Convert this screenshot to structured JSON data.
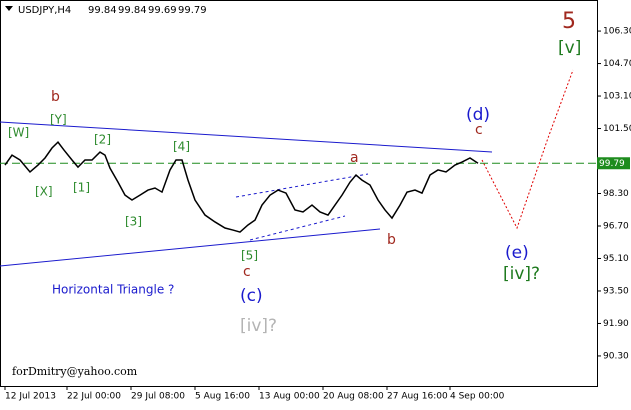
{
  "chart_data": {
    "type": "line",
    "symbol": "USDJPY,H4",
    "quote": [
      99.84,
      99.84,
      99.69,
      99.79
    ],
    "x": [
      1.25,
      3,
      5,
      7.5,
      9.5,
      11.25,
      13,
      14.5,
      16,
      18,
      19.5,
      21.25,
      23,
      25,
      26.25,
      27.5,
      29.5,
      31.25,
      33,
      35,
      37,
      38.75,
      40.5,
      42.5,
      44,
      45.5,
      47,
      48.75,
      51.25,
      53.75,
      56.25,
      58.25,
      60,
      62,
      63.75,
      65.5,
      67.5,
      69.5,
      71.5,
      73.75,
      75.75,
      78,
      80,
      82,
      83.75,
      85.5,
      87.5,
      89,
      90.5,
      92.5,
      94.5,
      96.25,
      98,
      100,
      101.75,
      103.75,
      105.5,
      107.5,
      109.5,
      111.5,
      113.75,
      115.5,
      117.5,
      119.5
    ],
    "series": [
      {
        "color": "#000000",
        "values": [
          99.7,
          100.19,
          99.95,
          99.36,
          99.7,
          100.05,
          100.54,
          100.83,
          100.44,
          99.95,
          99.6,
          99.95,
          99.95,
          100.34,
          100.19,
          99.55,
          98.86,
          98.22,
          97.98,
          98.22,
          98.47,
          98.57,
          98.37,
          99.46,
          99.95,
          99.95,
          98.96,
          97.98,
          97.24,
          96.9,
          96.6,
          96.5,
          96.4,
          96.75,
          96.99,
          97.73,
          98.22,
          98.47,
          98.32,
          97.49,
          97.39,
          97.73,
          97.39,
          97.24,
          97.73,
          98.22,
          98.86,
          99.21,
          98.96,
          98.72,
          97.98,
          97.49,
          97.09,
          97.73,
          98.37,
          98.47,
          98.32,
          99.21,
          99.46,
          99.36,
          99.7,
          99.85,
          100.05,
          99.79
        ]
      }
    ],
    "xlim": [
      0,
      149.25
    ],
    "xticks": [
      {
        "value": 1.25,
        "label": "12 Jul 2013"
      },
      {
        "value": 16.75,
        "label": "22 Jul 00:00"
      },
      {
        "value": 32.75,
        "label": "29 Jul 08:00"
      },
      {
        "value": 48.75,
        "label": "5 Aug 16:00"
      },
      {
        "value": 64.75,
        "label": "13 Aug 00:00"
      },
      {
        "value": 80.75,
        "label": "20 Aug 08:00"
      },
      {
        "value": 96.75,
        "label": "27 Aug 16:00"
      },
      {
        "value": 112.5,
        "label": "4 Sep 00:00"
      }
    ],
    "ylim": [
      88.82,
      107.83
    ],
    "yticks": [
      {
        "value": 106.3,
        "label": "106.30"
      },
      {
        "value": 104.7,
        "label": "104.70"
      },
      {
        "value": 103.1,
        "label": "103.10"
      },
      {
        "value": 101.5,
        "label": "101.50"
      },
      {
        "value": 98.3,
        "label": "98.30"
      },
      {
        "value": 96.7,
        "label": "96.70"
      },
      {
        "value": 95.1,
        "label": "95.10"
      },
      {
        "value": 93.5,
        "label": "93.50"
      },
      {
        "value": 91.9,
        "label": "91.90"
      },
      {
        "value": 90.3,
        "label": "90.30"
      }
    ],
    "grid": false,
    "annotations": [
      "[W]",
      "[X]",
      "[Y]",
      "[1]",
      "[2]",
      "[3]",
      "[4]",
      "[5]",
      "b",
      "c",
      "(c)",
      "[iv]?",
      "a",
      "b",
      "(d)",
      "c",
      "(e)",
      "[iv]?",
      "5",
      "[v]",
      "Horizontal Triangle ?",
      "forDmitry@yahoo.com"
    ]
  }
}
